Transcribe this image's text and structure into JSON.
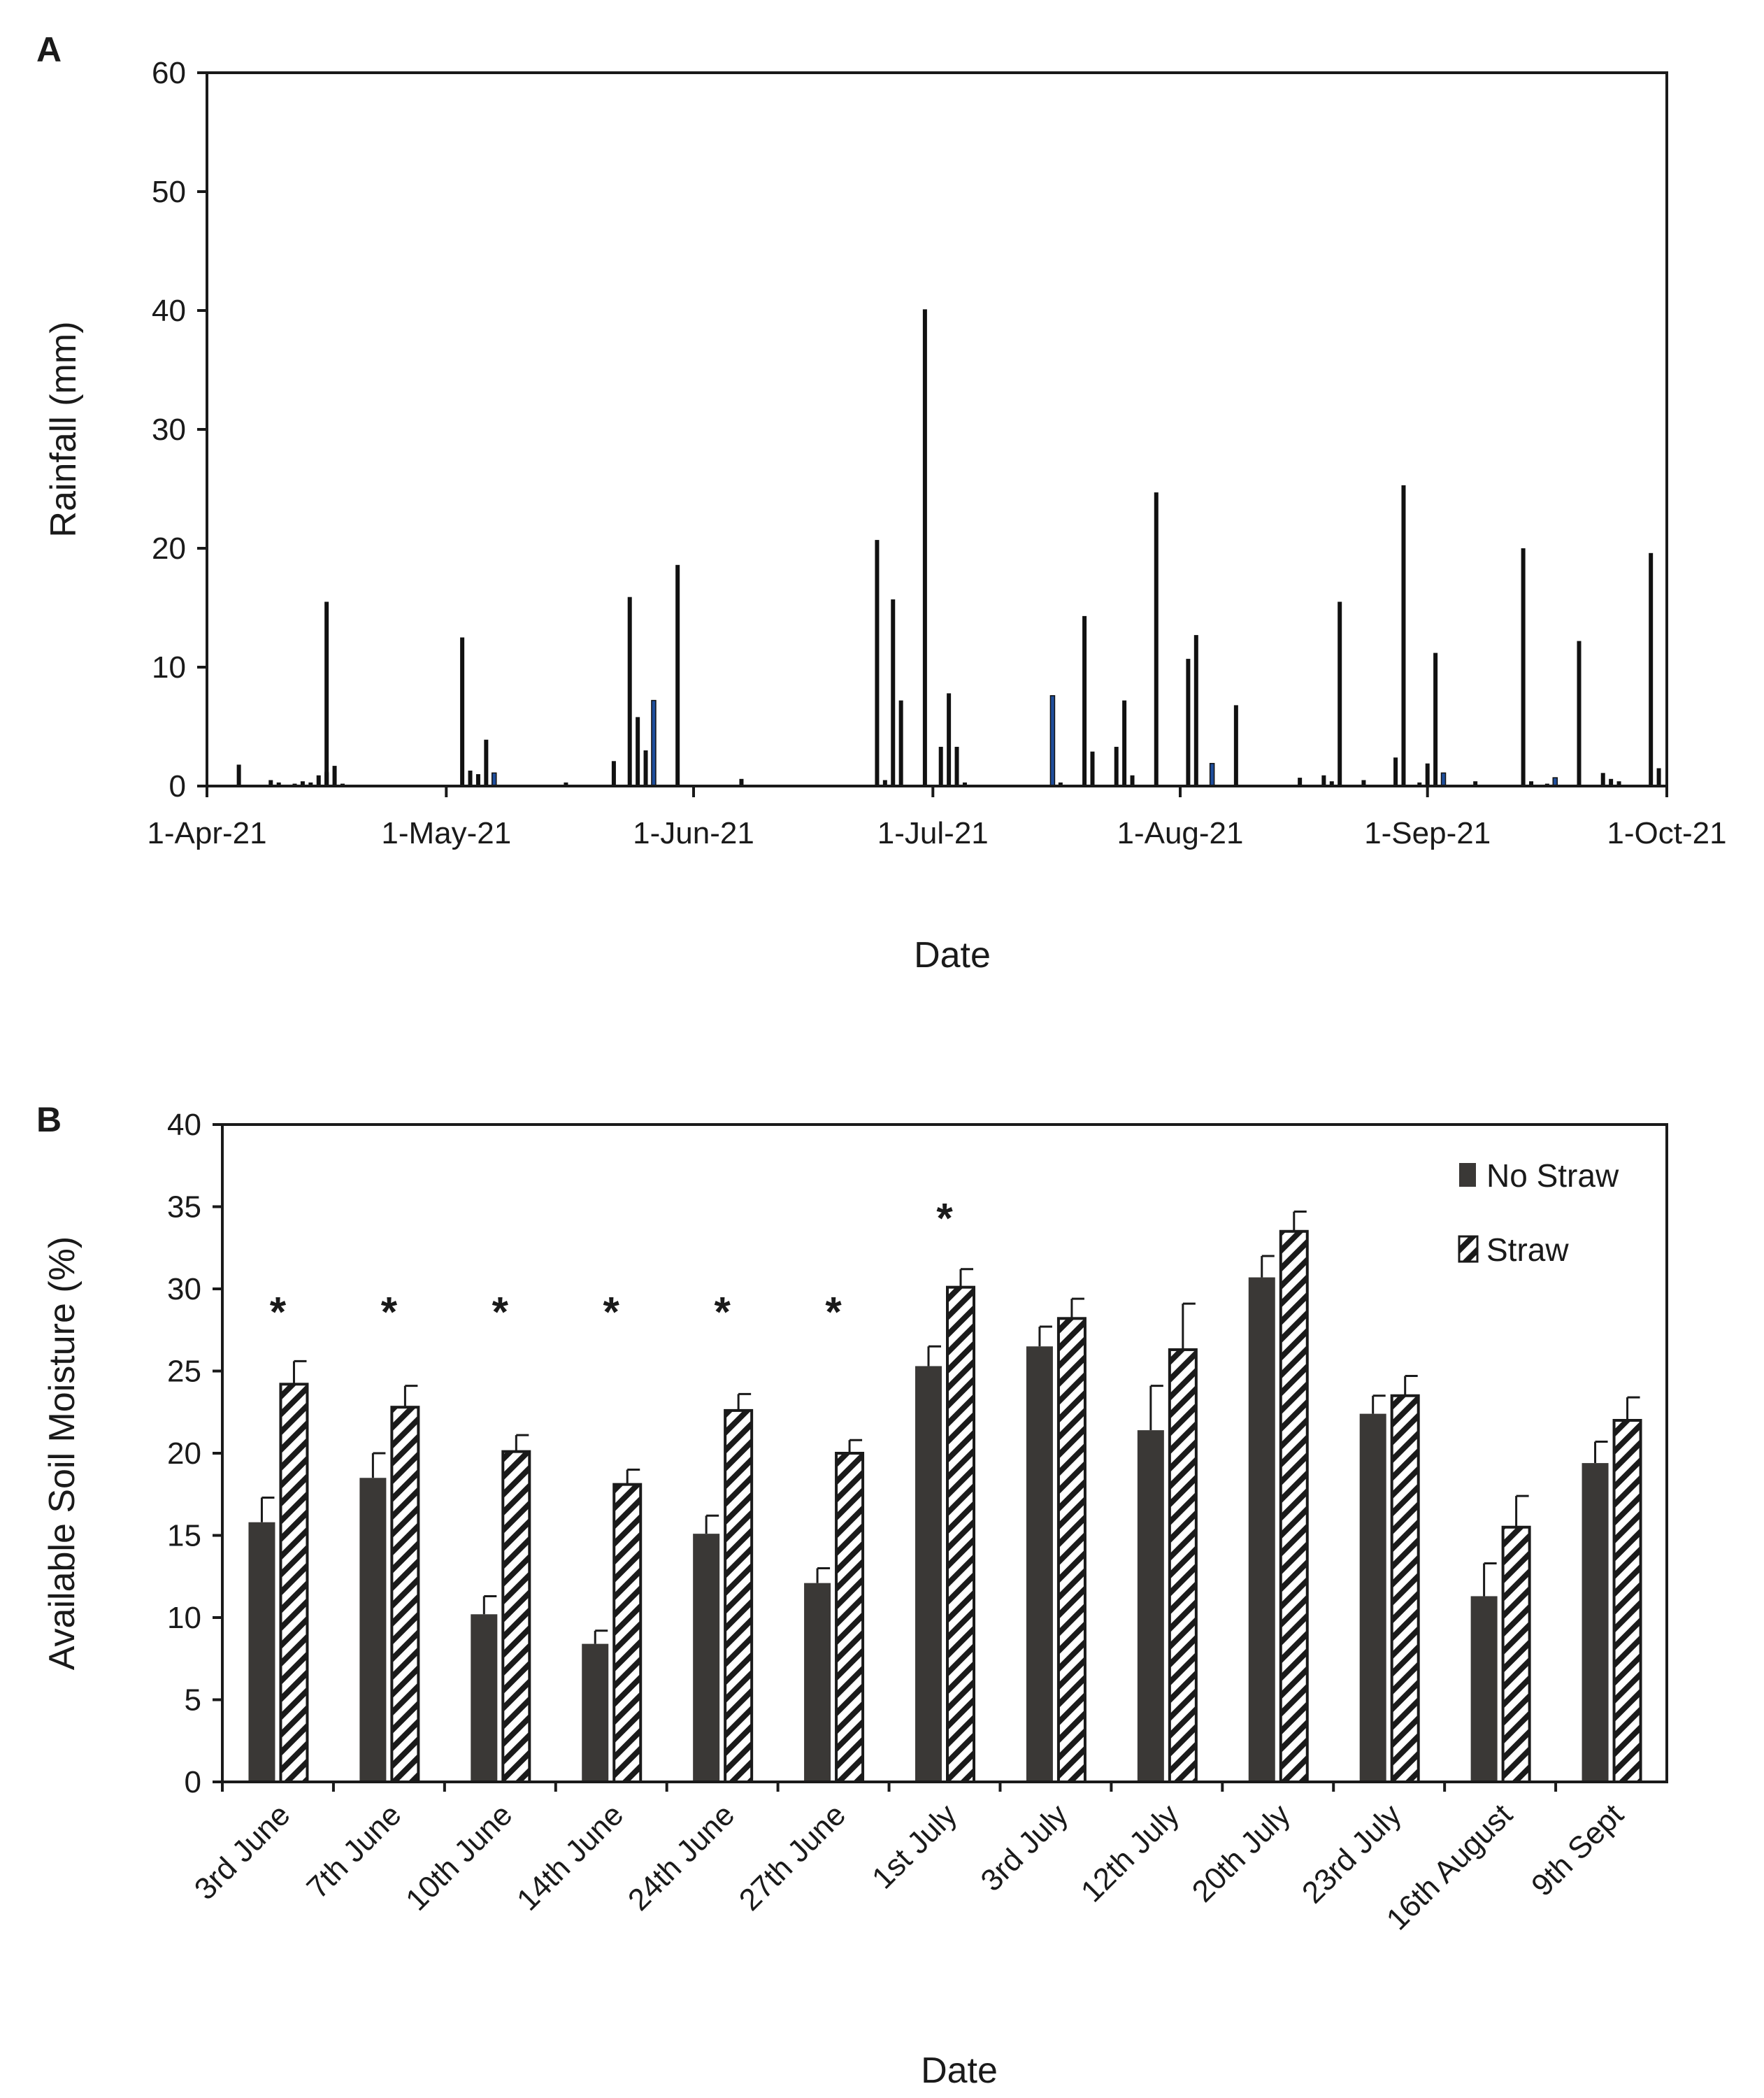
{
  "panel_a": {
    "letter": "A"
  },
  "panel_b": {
    "letter": "B"
  },
  "chart_data": [
    {
      "type": "bar",
      "panel": "A",
      "xlabel": "Date",
      "ylabel": "Rainfall (mm)",
      "ylim": [
        0,
        60
      ],
      "yticks": [
        0,
        10,
        20,
        30,
        40,
        50,
        60
      ],
      "xlim": [
        "2021-04-01",
        "2021-10-01"
      ],
      "xticks": [
        {
          "date": "2021-04-01",
          "label": "1-Apr-21"
        },
        {
          "date": "2021-05-01",
          "label": "1-May-21"
        },
        {
          "date": "2021-06-01",
          "label": "1-Jun-21"
        },
        {
          "date": "2021-07-01",
          "label": "1-Jul-21"
        },
        {
          "date": "2021-08-01",
          "label": "1-Aug-21"
        },
        {
          "date": "2021-09-01",
          "label": "1-Sep-21"
        },
        {
          "date": "2021-10-01",
          "label": "1-Oct-21"
        }
      ],
      "grid": false,
      "colors": {
        "rain": "#111111",
        "highlight": "#1f4e9c"
      },
      "points": [
        {
          "date": "2021-04-05",
          "value": 1.8
        },
        {
          "date": "2021-04-09",
          "value": 0.5
        },
        {
          "date": "2021-04-10",
          "value": 0.3
        },
        {
          "date": "2021-04-12",
          "value": 0.2
        },
        {
          "date": "2021-04-13",
          "value": 0.4
        },
        {
          "date": "2021-04-14",
          "value": 0.3
        },
        {
          "date": "2021-04-15",
          "value": 0.9
        },
        {
          "date": "2021-04-16",
          "value": 1.1
        },
        {
          "date": "2021-04-16",
          "value": 1.2
        },
        {
          "date": "2021-04-16",
          "value": 15.5
        },
        {
          "date": "2021-04-17",
          "value": 1.7
        },
        {
          "date": "2021-04-18",
          "value": 0.2
        },
        {
          "date": "2021-05-03",
          "value": 12.5
        },
        {
          "date": "2021-05-04",
          "value": 1.3
        },
        {
          "date": "2021-05-05",
          "value": 1.0
        },
        {
          "date": "2021-05-06",
          "value": 3.9
        },
        {
          "date": "2021-05-07",
          "value": 1.1,
          "highlight": true
        },
        {
          "date": "2021-05-16",
          "value": 0.3
        },
        {
          "date": "2021-05-22",
          "value": 2.1
        },
        {
          "date": "2021-05-24",
          "value": 15.9
        },
        {
          "date": "2021-05-25",
          "value": 5.8
        },
        {
          "date": "2021-05-26",
          "value": 3.0
        },
        {
          "date": "2021-05-27",
          "value": 7.2,
          "highlight": true
        },
        {
          "date": "2021-05-30",
          "value": 18.6
        },
        {
          "date": "2021-06-07",
          "value": 0.6
        },
        {
          "date": "2021-06-24",
          "value": 20.7
        },
        {
          "date": "2021-06-25",
          "value": 0.5
        },
        {
          "date": "2021-06-26",
          "value": 15.7
        },
        {
          "date": "2021-06-27",
          "value": 7.2
        },
        {
          "date": "2021-06-30",
          "value": 40.1
        },
        {
          "date": "2021-07-02",
          "value": 3.3
        },
        {
          "date": "2021-07-03",
          "value": 7.8
        },
        {
          "date": "2021-07-04",
          "value": 3.3
        },
        {
          "date": "2021-07-05",
          "value": 0.3
        },
        {
          "date": "2021-07-16",
          "value": 7.6,
          "highlight": true
        },
        {
          "date": "2021-07-17",
          "value": 0.3
        },
        {
          "date": "2021-07-20",
          "value": 14.3
        },
        {
          "date": "2021-07-21",
          "value": 2.9
        },
        {
          "date": "2021-07-24",
          "value": 3.3
        },
        {
          "date": "2021-07-25",
          "value": 7.2
        },
        {
          "date": "2021-07-26",
          "value": 0.9
        },
        {
          "date": "2021-07-29",
          "value": 24.7
        },
        {
          "date": "2021-08-02",
          "value": 10.7
        },
        {
          "date": "2021-08-03",
          "value": 12.7
        },
        {
          "date": "2021-08-05",
          "value": 1.9,
          "highlight": true
        },
        {
          "date": "2021-08-08",
          "value": 6.8
        },
        {
          "date": "2021-08-16",
          "value": 0.7
        },
        {
          "date": "2021-08-19",
          "value": 0.9
        },
        {
          "date": "2021-08-20",
          "value": 0.4
        },
        {
          "date": "2021-08-21",
          "value": 15.5
        },
        {
          "date": "2021-08-24",
          "value": 0.5
        },
        {
          "date": "2021-08-28",
          "value": 2.4
        },
        {
          "date": "2021-08-29",
          "value": 25.3
        },
        {
          "date": "2021-08-31",
          "value": 0.3
        },
        {
          "date": "2021-09-01",
          "value": 1.9
        },
        {
          "date": "2021-09-02",
          "value": 11.2
        },
        {
          "date": "2021-09-03",
          "value": 1.1,
          "highlight": true
        },
        {
          "date": "2021-09-07",
          "value": 0.4
        },
        {
          "date": "2021-09-13",
          "value": 20.0
        },
        {
          "date": "2021-09-14",
          "value": 0.4
        },
        {
          "date": "2021-09-16",
          "value": 0.2
        },
        {
          "date": "2021-09-17",
          "value": 0.7,
          "highlight": true
        },
        {
          "date": "2021-09-20",
          "value": 12.2
        },
        {
          "date": "2021-09-23",
          "value": 1.1
        },
        {
          "date": "2021-09-24",
          "value": 0.6
        },
        {
          "date": "2021-09-25",
          "value": 0.4
        },
        {
          "date": "2021-09-29",
          "value": 19.6
        },
        {
          "date": "2021-09-30",
          "value": 1.5
        }
      ]
    },
    {
      "type": "bar",
      "panel": "B",
      "xlabel": "Date",
      "ylabel": "Available Soil Moisture (%)",
      "ylim": [
        0,
        40
      ],
      "yticks": [
        0,
        5,
        10,
        15,
        20,
        25,
        30,
        35,
        40
      ],
      "grid": false,
      "legend": "top-right",
      "categories": [
        "3rd June",
        "7th  June",
        "10th June",
        "14th June",
        "24th June",
        "27th June",
        "1st July",
        "3rd July",
        "12th July",
        "20th July",
        "23rd July",
        "16th August",
        "9th Sept"
      ],
      "series": [
        {
          "name": "No Straw",
          "pattern": "solid",
          "color": "#3a3836",
          "values": [
            15.8,
            18.5,
            10.2,
            8.4,
            15.1,
            12.1,
            25.3,
            26.5,
            21.4,
            30.7,
            22.4,
            11.3,
            19.4
          ],
          "errors": [
            1.5,
            1.5,
            1.1,
            0.8,
            1.1,
            0.9,
            1.2,
            1.2,
            2.7,
            1.3,
            1.1,
            2.0,
            1.3
          ]
        },
        {
          "name": "Straw",
          "pattern": "diagonal-hatch",
          "color": "#1a1a1a",
          "values": [
            24.2,
            22.8,
            20.1,
            18.1,
            22.6,
            20.0,
            30.1,
            28.2,
            26.3,
            33.5,
            23.5,
            15.5,
            22.0
          ],
          "errors": [
            1.4,
            1.3,
            1.0,
            0.9,
            1.0,
            0.8,
            1.1,
            1.2,
            2.8,
            1.2,
            1.2,
            1.9,
            1.4
          ]
        }
      ],
      "significance": {
        "marker": "*",
        "categories": [
          "3rd June",
          "7th  June",
          "10th June",
          "14th June",
          "24th June",
          "27th June",
          "1st July"
        ]
      }
    }
  ]
}
